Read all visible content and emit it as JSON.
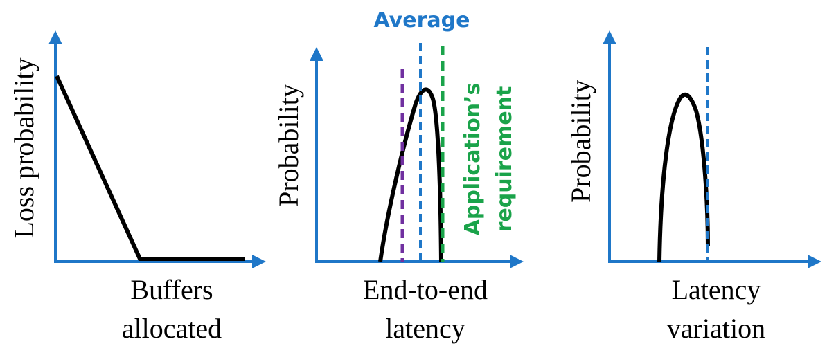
{
  "panels": {
    "loss": {
      "ylabel": "Loss probability",
      "xlabel_line1": "Buffers",
      "xlabel_line2": "allocated"
    },
    "latency": {
      "ylabel": "Probability",
      "xlabel_line1": "End-to-end",
      "xlabel_line2": "latency",
      "average_label": "Average",
      "requirement_line1": "Application’s",
      "requirement_line2": "requirement"
    },
    "variation": {
      "ylabel": "Probability",
      "xlabel_line1": "Latency",
      "xlabel_line2": "variation"
    }
  },
  "colors": {
    "axis": "#1f77c8",
    "curve": "#000000",
    "average": "#1f77c8",
    "requirement": "#1aa34a",
    "purple_marker": "#7030a0"
  }
}
